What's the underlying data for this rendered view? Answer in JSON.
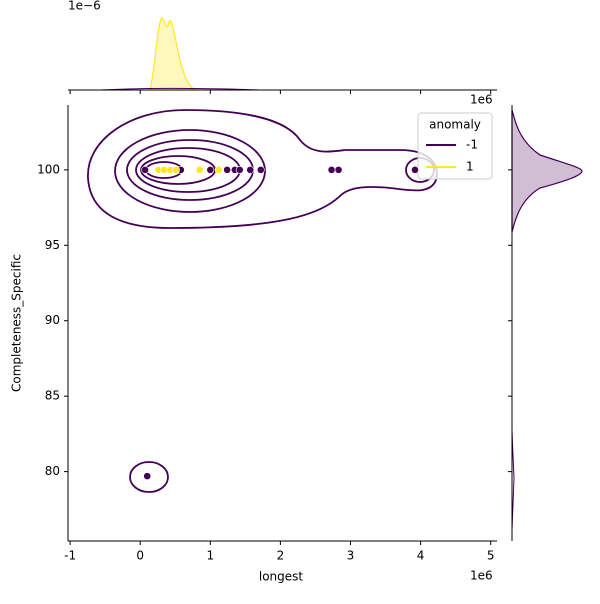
{
  "chart_data": {
    "type": "scatter",
    "xlabel": "longest",
    "ylabel": "Completeness_Specific",
    "legend_title": "anomaly",
    "legend_position": "upper right",
    "x_offset_text": "1e6",
    "top_offset_text": "1e6",
    "density_offset_text": "1e−6",
    "xlim": [
      -1.03,
      5.09
    ],
    "ylim": [
      75.4,
      104.3
    ],
    "xticks": [
      -1,
      0,
      1,
      2,
      3,
      4,
      5
    ],
    "yticks": [
      80,
      85,
      90,
      95,
      100
    ],
    "series": [
      {
        "name": "-1",
        "color": "#440154",
        "x": [
          0.07,
          0.1,
          0.58,
          0.85,
          1.0,
          1.24,
          1.35,
          1.42,
          1.57,
          1.72,
          2.73,
          2.83,
          3.92
        ],
        "values": [
          100,
          79.7,
          100,
          100,
          100,
          100,
          100,
          100,
          100,
          100,
          100,
          100,
          100
        ]
      },
      {
        "name": "1",
        "color": "#fde725",
        "x": [
          0.26,
          0.34,
          0.43,
          0.51,
          0.85,
          1.12
        ],
        "values": [
          100,
          100,
          100,
          100,
          100,
          100
        ]
      }
    ]
  }
}
